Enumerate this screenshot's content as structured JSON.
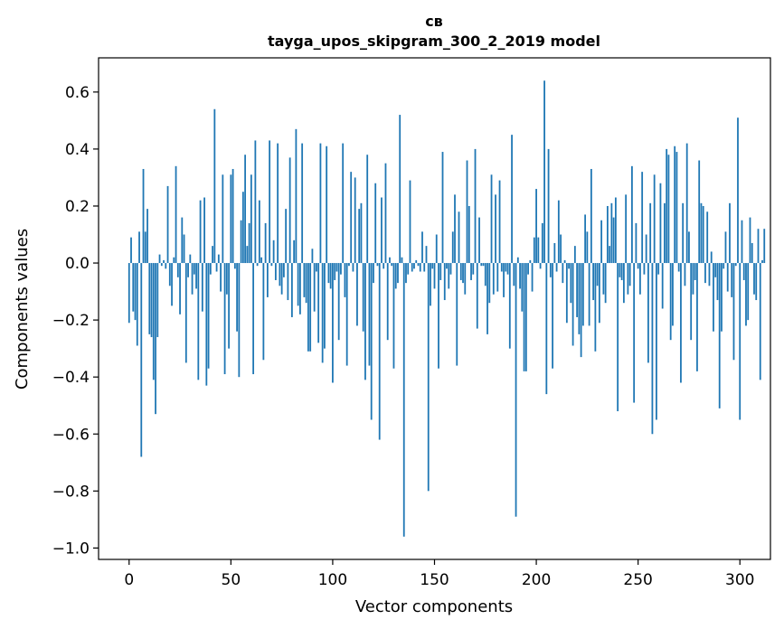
{
  "chart_data": {
    "type": "bar",
    "title": "св",
    "subtitle": "tayga_upos_skipgram_300_2_2019 model",
    "xlabel": "Vector components",
    "ylabel": "Components values",
    "xlim": [
      -15,
      315
    ],
    "ylim": [
      -1.04,
      0.72
    ],
    "xticks": [
      0,
      50,
      100,
      150,
      200,
      250,
      300
    ],
    "yticks": [
      -1.0,
      -0.8,
      -0.6,
      -0.4,
      -0.2,
      0.0,
      0.2,
      0.4,
      0.6
    ],
    "ytick_labels": [
      "−1.0",
      "−0.8",
      "−0.6",
      "−0.4",
      "−0.2",
      "0.0",
      "0.2",
      "0.4",
      "0.6"
    ],
    "bar_color": "#1f77b4",
    "values": [
      -0.21,
      0.09,
      -0.17,
      -0.2,
      -0.29,
      0.11,
      -0.68,
      0.33,
      0.11,
      0.19,
      -0.25,
      -0.26,
      -0.41,
      -0.53,
      -0.26,
      0.03,
      -0.01,
      0.01,
      -0.02,
      0.27,
      -0.08,
      -0.15,
      0.02,
      0.34,
      -0.05,
      -0.18,
      0.16,
      0.1,
      -0.35,
      -0.05,
      0.03,
      -0.11,
      -0.04,
      -0.09,
      -0.41,
      0.22,
      -0.17,
      0.23,
      -0.43,
      -0.37,
      -0.04,
      0.06,
      0.54,
      -0.03,
      0.03,
      -0.1,
      0.31,
      -0.39,
      -0.11,
      -0.3,
      0.31,
      0.33,
      -0.02,
      -0.24,
      -0.4,
      0.15,
      0.25,
      0.38,
      0.06,
      0.14,
      0.31,
      -0.39,
      0.43,
      -0.01,
      0.22,
      0.02,
      -0.34,
      0.14,
      -0.12,
      0.43,
      -0.01,
      0.08,
      -0.06,
      0.42,
      -0.08,
      -0.11,
      -0.05,
      0.19,
      -0.13,
      0.37,
      -0.19,
      0.08,
      0.47,
      -0.15,
      -0.18,
      0.42,
      -0.12,
      -0.14,
      -0.31,
      -0.31,
      0.05,
      -0.17,
      -0.03,
      -0.28,
      0.42,
      -0.35,
      -0.3,
      0.41,
      -0.07,
      -0.09,
      -0.42,
      -0.06,
      -0.03,
      -0.27,
      -0.04,
      0.42,
      -0.12,
      -0.36,
      -0.01,
      0.32,
      -0.03,
      0.3,
      -0.22,
      0.19,
      0.21,
      -0.24,
      -0.41,
      0.38,
      -0.36,
      -0.55,
      -0.07,
      0.28,
      -0.01,
      -0.62,
      0.23,
      -0.02,
      0.35,
      -0.27,
      0.02,
      -0.01,
      -0.37,
      -0.09,
      -0.07,
      0.52,
      0.02,
      -0.96,
      -0.07,
      -0.04,
      0.29,
      -0.03,
      -0.02,
      0.01,
      -0.01,
      -0.03,
      0.11,
      -0.03,
      0.06,
      -0.8,
      -0.15,
      -0.02,
      -0.09,
      0.1,
      -0.37,
      -0.06,
      0.39,
      -0.13,
      -0.02,
      -0.09,
      -0.04,
      0.11,
      0.24,
      -0.36,
      0.18,
      -0.06,
      -0.07,
      -0.11,
      0.36,
      0.2,
      -0.06,
      -0.04,
      0.4,
      -0.23,
      0.16,
      -0.01,
      -0.01,
      -0.08,
      -0.25,
      -0.14,
      0.31,
      -0.11,
      0.24,
      -0.1,
      0.29,
      -0.03,
      -0.12,
      -0.03,
      -0.04,
      -0.3,
      0.45,
      -0.08,
      -0.89,
      0.02,
      -0.09,
      -0.17,
      -0.38,
      -0.38,
      -0.04,
      0.01,
      -0.1,
      0.09,
      0.26,
      0.09,
      -0.02,
      0.14,
      0.64,
      -0.46,
      0.4,
      -0.05,
      -0.37,
      0.07,
      -0.03,
      0.22,
      0.1,
      -0.07,
      0.01,
      -0.21,
      -0.02,
      -0.14,
      -0.29,
      0.06,
      -0.19,
      -0.25,
      -0.33,
      -0.22,
      0.17,
      0.11,
      -0.22,
      0.33,
      -0.13,
      -0.31,
      -0.08,
      -0.21,
      0.15,
      -0.11,
      -0.14,
      0.2,
      0.06,
      0.21,
      0.16,
      0.23,
      -0.52,
      -0.05,
      -0.06,
      -0.14,
      0.24,
      -0.11,
      -0.08,
      0.34,
      -0.49,
      0.14,
      -0.02,
      -0.11,
      0.32,
      -0.04,
      0.1,
      -0.35,
      0.21,
      -0.6,
      0.31,
      -0.55,
      -0.04,
      0.28,
      -0.16,
      0.21,
      0.4,
      0.38,
      -0.27,
      -0.22,
      0.41,
      0.39,
      -0.03,
      -0.42,
      0.21,
      -0.08,
      0.42,
      0.11,
      -0.27,
      -0.11,
      -0.06,
      -0.38,
      0.36,
      0.21,
      0.2,
      -0.07,
      0.18,
      -0.08,
      0.04,
      -0.24,
      -0.05,
      -0.13,
      -0.51,
      -0.24,
      -0.02,
      0.11,
      -0.1,
      0.21,
      -0.12,
      -0.34,
      -0.01,
      0.51,
      -0.55,
      0.15,
      -0.06,
      -0.22,
      -0.2,
      0.16,
      0.07,
      -0.11,
      -0.13,
      0.12,
      -0.41,
      0.01,
      0.12
    ]
  }
}
